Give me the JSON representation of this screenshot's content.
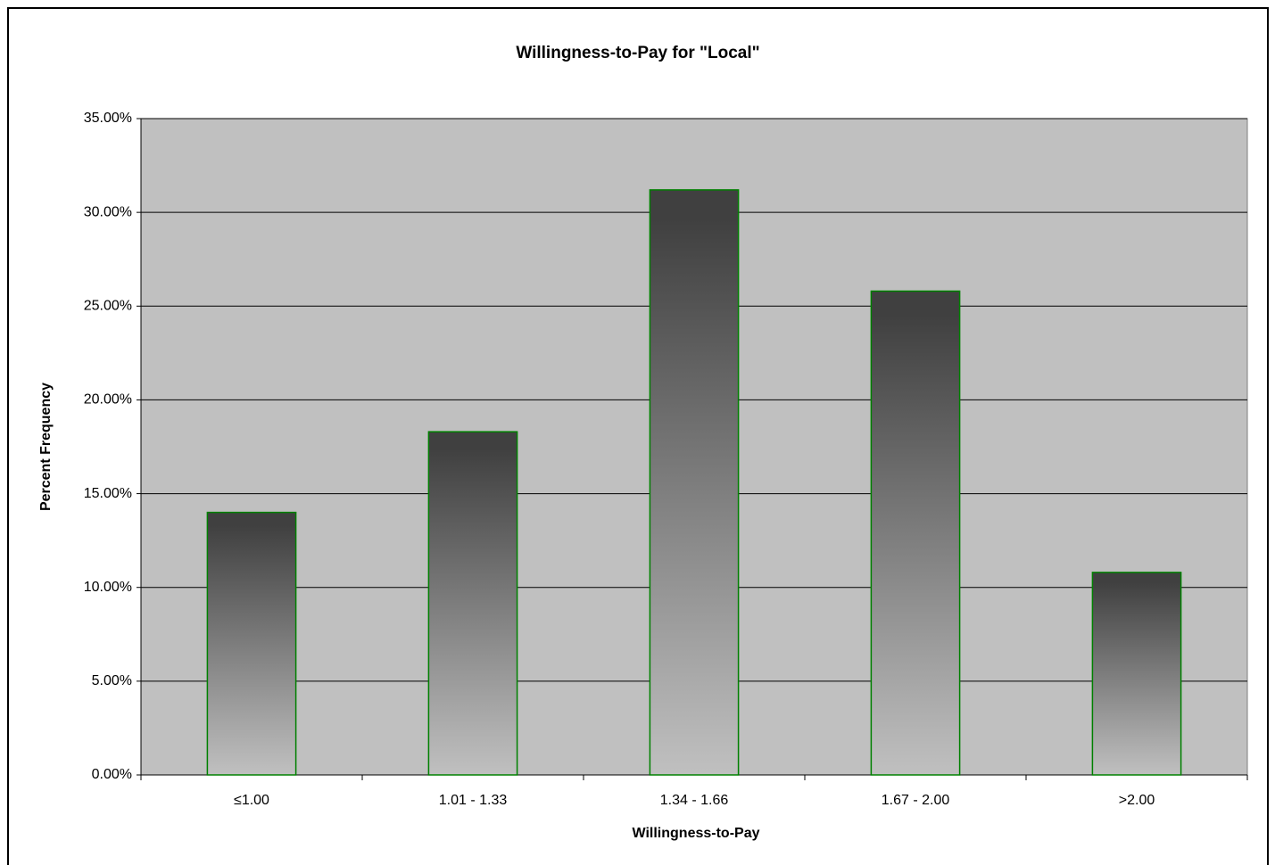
{
  "chart_data": {
    "type": "bar",
    "title": "Willingness-to-Pay for \"Local\"",
    "x_label": "Willingness-to-Pay",
    "y_label": "Percent Frequency",
    "categories": [
      "≤1.00",
      "1.01 - 1.33",
      "1.34 - 1.66",
      "1.67 - 2.00",
      ">2.00"
    ],
    "values": [
      14.0,
      18.3,
      31.2,
      25.8,
      10.8
    ],
    "color": "#404040",
    "edge_color": "#008000",
    "ylim": [
      0,
      35
    ],
    "yticks": [
      {
        "value": 0,
        "label": "0.00%"
      },
      {
        "value": 5,
        "label": "5.00%"
      },
      {
        "value": 10,
        "label": "10.00%"
      },
      {
        "value": 15,
        "label": "15.00%"
      },
      {
        "value": 20,
        "label": "20.00%"
      },
      {
        "value": 25,
        "label": "25.00%"
      },
      {
        "value": 30,
        "label": "30.00%"
      },
      {
        "value": 35,
        "label": "35.00%"
      }
    ],
    "grid": true
  }
}
